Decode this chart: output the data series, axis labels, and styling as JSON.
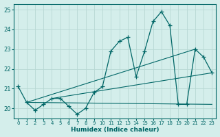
{
  "xlabel": "Humidex (Indice chaleur)",
  "bg_color": "#d4eeeb",
  "line_color": "#006666",
  "grid_color": "#b8d8d4",
  "xlim": [
    -0.5,
    23.5
  ],
  "ylim": [
    19.5,
    25.3
  ],
  "yticks": [
    20,
    21,
    22,
    23,
    24,
    25
  ],
  "xticks": [
    0,
    1,
    2,
    3,
    4,
    5,
    6,
    7,
    8,
    9,
    10,
    11,
    12,
    13,
    14,
    15,
    16,
    17,
    18,
    19,
    20,
    21,
    22,
    23
  ],
  "main_x": [
    0,
    1,
    2,
    3,
    4,
    5,
    6,
    7,
    8,
    9,
    10,
    11,
    12,
    13,
    14,
    15,
    16,
    17,
    18,
    19,
    20,
    21,
    22,
    23
  ],
  "main_y": [
    21.1,
    20.3,
    19.9,
    20.2,
    20.5,
    20.5,
    20.1,
    19.7,
    20.0,
    20.8,
    21.1,
    22.9,
    23.4,
    23.6,
    21.6,
    22.9,
    24.4,
    24.9,
    24.2,
    20.2,
    20.2,
    23.0,
    22.6,
    21.8
  ],
  "trendline1_x": [
    1,
    23
  ],
  "trendline1_y": [
    20.3,
    20.2
  ],
  "trendline2_x": [
    1,
    21
  ],
  "trendline2_y": [
    20.3,
    23.0
  ],
  "trendline3_x": [
    4,
    23
  ],
  "trendline3_y": [
    20.5,
    21.8
  ]
}
